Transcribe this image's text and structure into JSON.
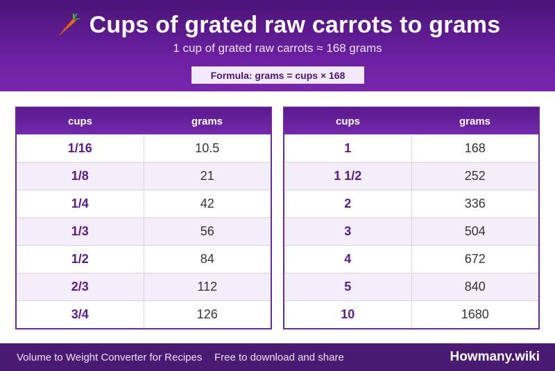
{
  "header": {
    "title": "Cups of grated raw carrots to grams",
    "icon": "carrot-icon",
    "subtitle": "1 cup of grated raw carrots ≈ 168 grams",
    "formula": "Formula: grams = cups × 168"
  },
  "table_left": {
    "col1": "cups",
    "col2": "grams",
    "rows": [
      {
        "cups": "1/16",
        "grams": "10.5"
      },
      {
        "cups": "1/8",
        "grams": "21"
      },
      {
        "cups": "1/4",
        "grams": "42"
      },
      {
        "cups": "1/3",
        "grams": "56"
      },
      {
        "cups": "1/2",
        "grams": "84"
      },
      {
        "cups": "2/3",
        "grams": "112"
      },
      {
        "cups": "3/4",
        "grams": "126"
      }
    ]
  },
  "table_right": {
    "col1": "cups",
    "col2": "grams",
    "rows": [
      {
        "cups": "1",
        "grams": "168"
      },
      {
        "cups": "1 1/2",
        "grams": "252"
      },
      {
        "cups": "2",
        "grams": "336"
      },
      {
        "cups": "3",
        "grams": "504"
      },
      {
        "cups": "4",
        "grams": "672"
      },
      {
        "cups": "5",
        "grams": "840"
      },
      {
        "cups": "10",
        "grams": "1680"
      }
    ]
  },
  "footer": {
    "left_text": "Volume to Weight Converter for Recipes",
    "middle_text": "Free to download and share",
    "brand": "Howmany.wiki"
  },
  "colors": {
    "header_purple": "#6a1f9e",
    "accent_purple": "#5a1a8c",
    "footer_purple": "#4a1a72",
    "row_alt": "#f4eefa"
  }
}
